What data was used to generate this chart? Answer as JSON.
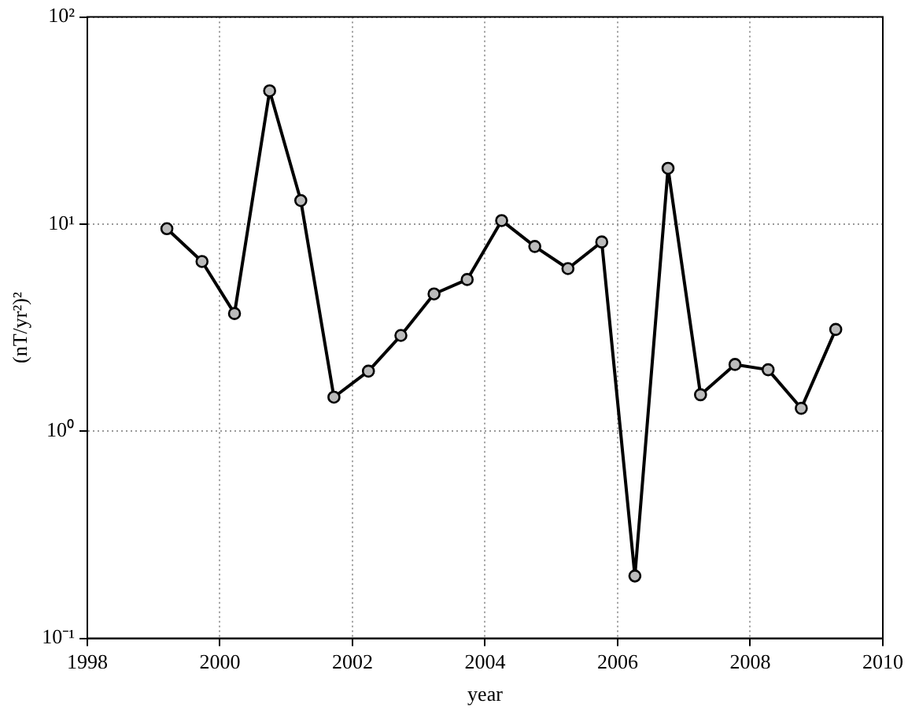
{
  "chart_data": {
    "type": "line",
    "xlabel": "year",
    "ylabel": "(nT/yr²)²",
    "log": "y",
    "grid": true,
    "marker": "circle",
    "line_style": "solid",
    "legend": false,
    "xlim": [
      1998,
      2010
    ],
    "xticks": [
      1998,
      2000,
      2002,
      2004,
      2006,
      2008,
      2010
    ],
    "ylim": [
      0.1,
      100
    ],
    "yticks": [
      {
        "value": 0.1,
        "label": "10⁻¹"
      },
      {
        "value": 1,
        "label": "10⁰"
      },
      {
        "value": 10,
        "label": "10¹"
      },
      {
        "value": 100,
        "label": "10²"
      }
    ],
    "series": [
      {
        "color": "#000000",
        "x": [
          1999.2,
          1999.73,
          2000.22,
          2000.75,
          2001.22,
          2001.72,
          2002.24,
          2002.73,
          2003.23,
          2003.73,
          2004.25,
          2004.75,
          2005.25,
          2005.76,
          2006.26,
          2006.76,
          2007.25,
          2007.77,
          2008.27,
          2008.77,
          2009.29
        ],
        "values": [
          9.5,
          6.6,
          3.7,
          44,
          13,
          1.46,
          1.95,
          2.9,
          4.6,
          5.4,
          10.4,
          7.8,
          6.1,
          8.2,
          0.2,
          18.6,
          1.5,
          2.1,
          1.98,
          1.29,
          3.1
        ]
      }
    ]
  }
}
